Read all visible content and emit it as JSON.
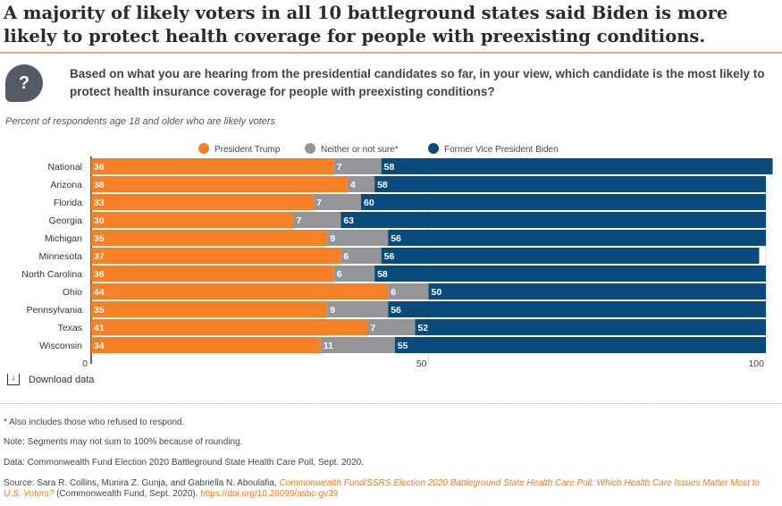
{
  "title": "A majority of likely voters in all 10 battleground states said Biden is more likely to protect health coverage for people with preexisting conditions.",
  "question_icon": "question-mark-icon",
  "question_mark": "?",
  "question": "Based on what you are hearing from the presidential candidates so far, in your view, which candidate is the most likely to protect health insurance coverage for people with preexisting conditions?",
  "subtitle": "Percent of respondents age 18 and older who are likely voters",
  "download_label": "Download data",
  "footnotes": {
    "asterisk": "* Also includes those who refused to respond.",
    "note": "Note: Segments may not sum to 100% because of rounding.",
    "data": "Data: Commonwealth Fund Election 2020 Battleground State Health Care Poll, Sept. 2020.",
    "source_prefix": "Source: Sara R. Collins, Munira Z. Gunja, and Gabriella N. Aboulafia, ",
    "source_title": "Commonwealth Fund/SSRS Election 2020 Battleground State Health Care Poll: Which Health Care Issues Matter Most to U.S. Voters?",
    "source_suffix": " (Commonwealth Fund, Sept. 2020). ",
    "source_link": "https://doi.org/10.26099/asbc-gv39"
  },
  "chart_data": {
    "type": "bar",
    "orientation": "horizontal",
    "stacked": true,
    "categories": [
      "National",
      "Arizona",
      "Florida",
      "Georgia",
      "Michigan",
      "Minnesota",
      "North Carolina",
      "Ohio",
      "Pennsylvania",
      "Texas",
      "Wisconsin"
    ],
    "series": [
      {
        "name": "President Trump",
        "color": "#f58025",
        "values": [
          36,
          38,
          33,
          30,
          35,
          37,
          36,
          44,
          35,
          41,
          34
        ]
      },
      {
        "name": "Neither or not sure*",
        "color": "#939598",
        "values": [
          7,
          4,
          7,
          7,
          9,
          6,
          6,
          6,
          9,
          7,
          11
        ]
      },
      {
        "name": "Former Vice President Biden",
        "color": "#0b4a7d",
        "values": [
          58,
          58,
          60,
          63,
          56,
          56,
          58,
          50,
          56,
          52,
          55
        ]
      }
    ],
    "xlim": [
      0,
      100
    ],
    "xticks": [
      "0",
      "50",
      "100"
    ],
    "legend": "top-center",
    "grid": true
  }
}
